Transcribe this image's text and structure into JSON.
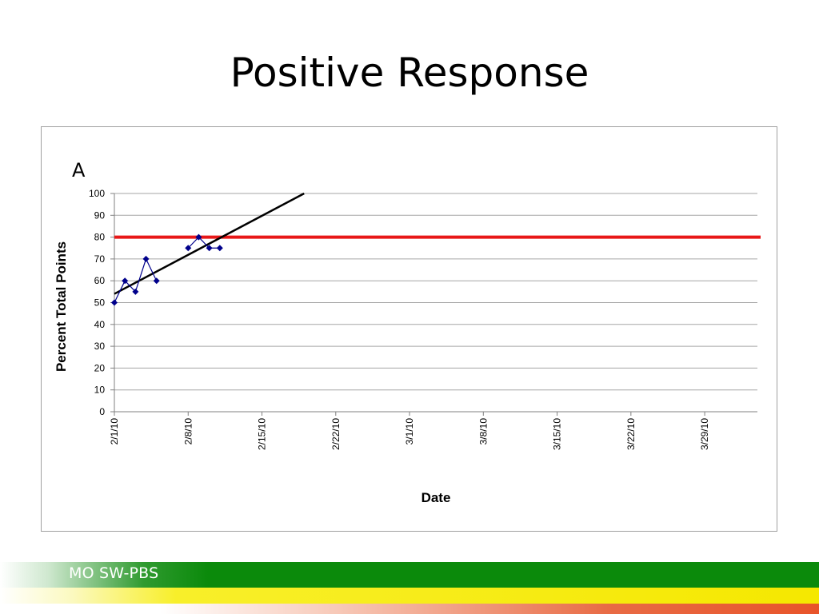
{
  "slide": {
    "title": "Positive Response",
    "footer_label": "MO SW-PBS"
  },
  "colors": {
    "data_line": "#00008B",
    "trend_line": "#000000",
    "goal_line": "#E81818",
    "grid": "#a6a6a6",
    "footer_green": "#0b8a0b",
    "footer_yellow": "#f5e800",
    "footer_red": "#e8542a"
  },
  "chart_data": {
    "type": "line",
    "panel_label": "A",
    "xlabel": "Date",
    "ylabel": "Percent Total Points",
    "ylim": [
      0,
      100
    ],
    "yticks": [
      0,
      10,
      20,
      30,
      40,
      50,
      60,
      70,
      80,
      90,
      100
    ],
    "xlim": [
      "2010-02-01",
      "2010-04-03"
    ],
    "xticks": [
      "2010-02-01",
      "2010-02-08",
      "2010-02-15",
      "2010-02-22",
      "2010-03-01",
      "2010-03-08",
      "2010-03-15",
      "2010-03-22",
      "2010-03-29"
    ],
    "xtick_labels": [
      "2/1/10",
      "2/8/10",
      "2/15/10",
      "2/22/10",
      "3/1/10",
      "3/8/10",
      "3/15/10",
      "3/22/10",
      "3/29/10"
    ],
    "grid": true,
    "legend": "none",
    "series": [
      {
        "x": [
          "2010-02-01",
          "2010-02-02",
          "2010-02-03",
          "2010-02-04",
          "2010-02-05"
        ],
        "values": [
          50,
          60,
          55,
          70,
          60
        ],
        "marker": "diamond"
      },
      {
        "x": [
          "2010-02-08",
          "2010-02-09",
          "2010-02-10",
          "2010-02-11"
        ],
        "values": [
          75,
          80,
          75,
          75
        ],
        "marker": "diamond"
      }
    ],
    "trend_line": {
      "x": [
        "2010-02-01",
        "2010-02-19"
      ],
      "values": [
        54,
        100
      ]
    },
    "goal_line": {
      "value": 80
    }
  }
}
